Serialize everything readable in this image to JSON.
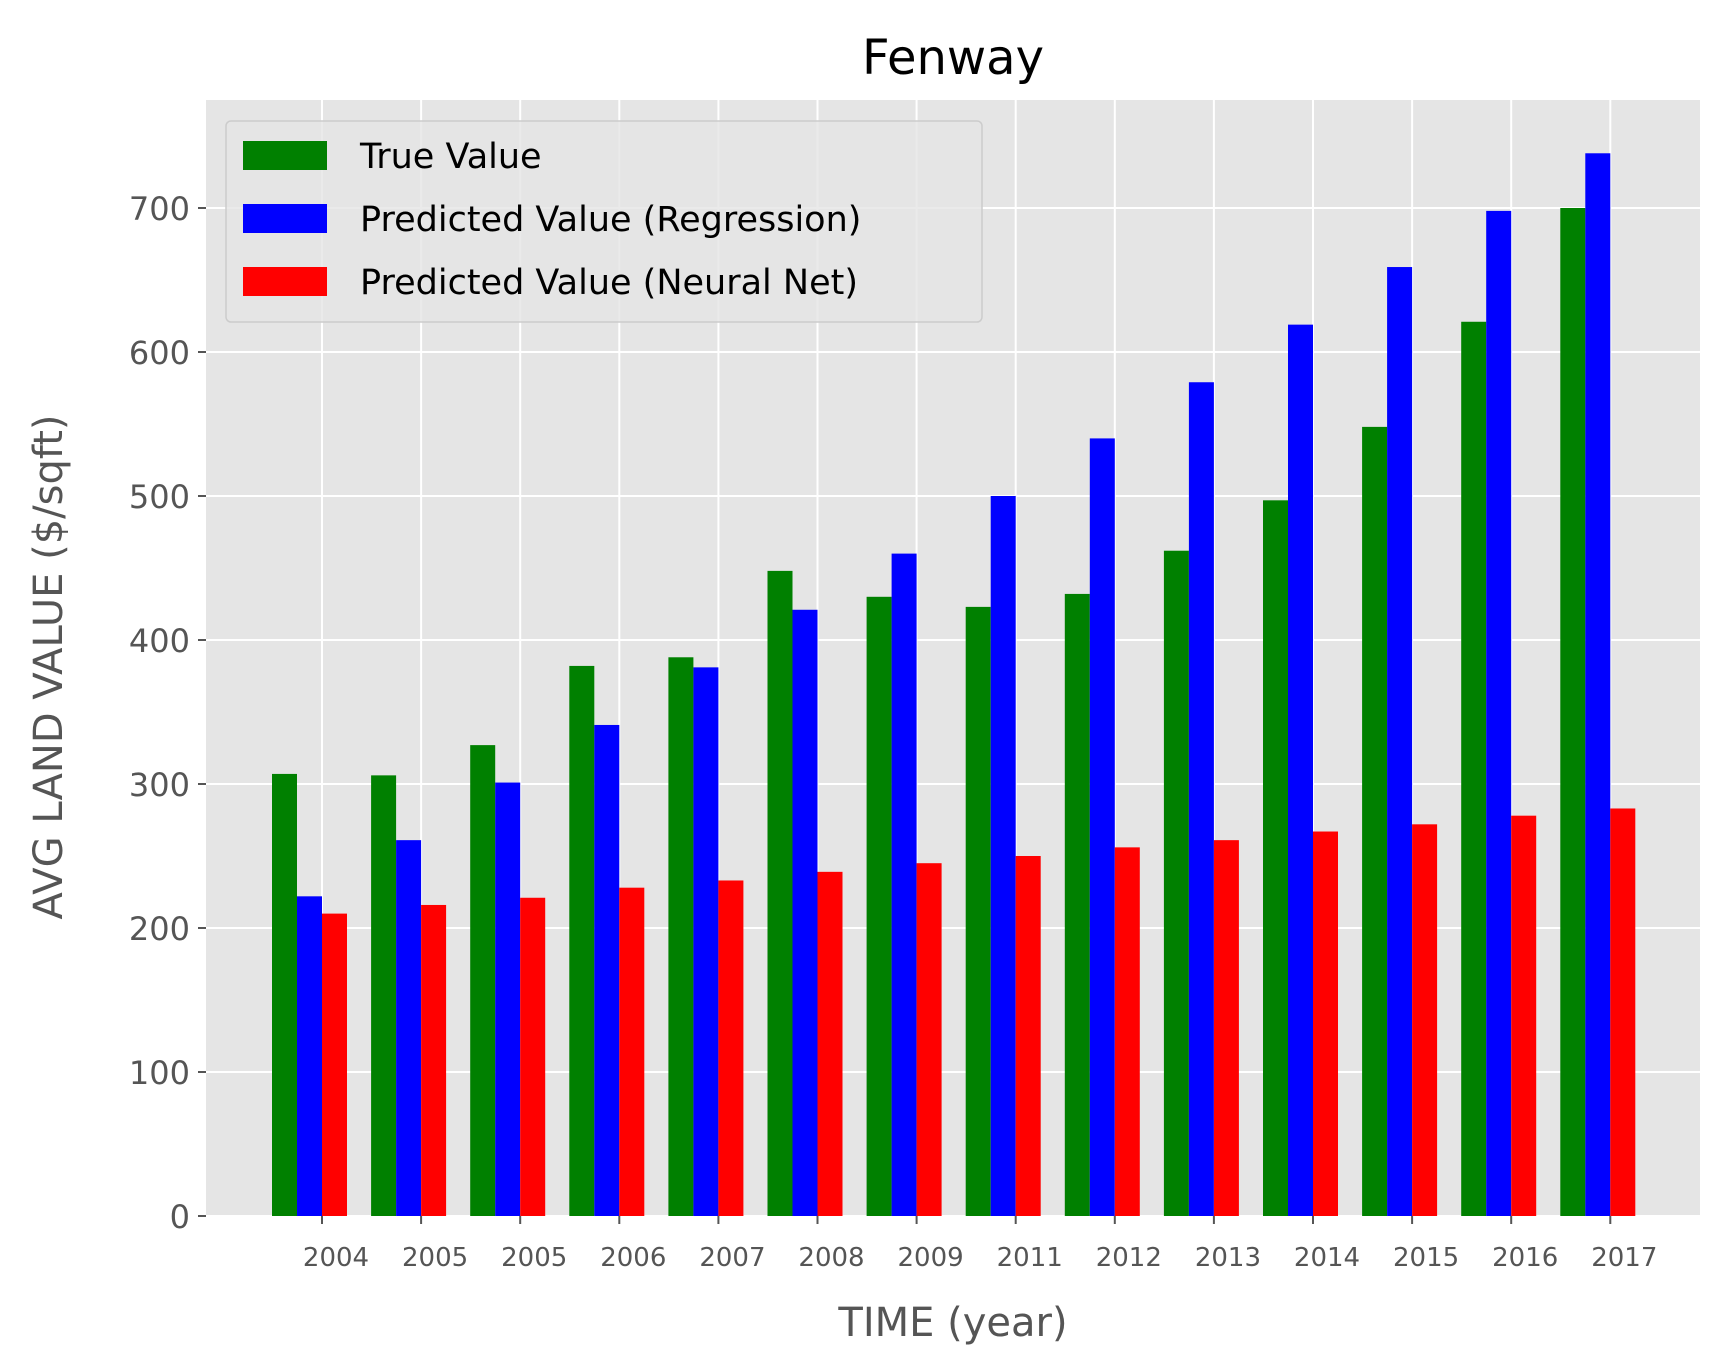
{
  "chart_data": {
    "type": "bar",
    "title": "Fenway",
    "xlabel": "TIME (year)",
    "ylabel": "AVG LAND VALUE ($/sqft)",
    "categories": [
      "2004",
      "2005",
      "2005",
      "2006",
      "2007",
      "2008",
      "2009",
      "2011",
      "2012",
      "2013",
      "2014",
      "2015",
      "2016",
      "2017"
    ],
    "series": [
      {
        "name": "True Value",
        "color": "#008000",
        "values": [
          307,
          306,
          327,
          382,
          388,
          448,
          430,
          423,
          432,
          462,
          497,
          548,
          621,
          700
        ]
      },
      {
        "name": "Predicted Value (Regression)",
        "color": "#0000ff",
        "values": [
          222,
          261,
          301,
          341,
          381,
          421,
          460,
          500,
          540,
          579,
          619,
          659,
          698,
          738
        ]
      },
      {
        "name": "Predicted Value (Neural Net)",
        "color": "#ff0000",
        "values": [
          210,
          216,
          221,
          228,
          233,
          239,
          245,
          250,
          256,
          261,
          267,
          272,
          278,
          283
        ]
      }
    ],
    "ylim": [
      0,
      775
    ],
    "yticks": [
      0,
      100,
      200,
      300,
      400,
      500,
      600,
      700
    ],
    "grid": true,
    "legend_position": "top-left"
  }
}
